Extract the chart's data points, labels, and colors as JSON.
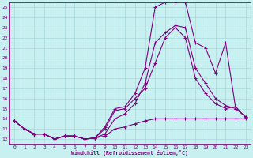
{
  "xlabel": "Windchill (Refroidissement éolien,°C)",
  "bg_color": "#c8f0f0",
  "grid_color": "#a8d8d8",
  "line_color": "#800080",
  "xlim": [
    -0.5,
    23.5
  ],
  "ylim": [
    11.5,
    25.5
  ],
  "xticks": [
    0,
    1,
    2,
    3,
    4,
    5,
    6,
    7,
    8,
    9,
    10,
    11,
    12,
    13,
    14,
    15,
    16,
    17,
    18,
    19,
    20,
    21,
    22,
    23
  ],
  "yticks": [
    12,
    13,
    14,
    15,
    16,
    17,
    18,
    19,
    20,
    21,
    22,
    23,
    24,
    25
  ],
  "line1_x": [
    0,
    1,
    2,
    3,
    4,
    5,
    6,
    7,
    8,
    9,
    10,
    11,
    12,
    13,
    14,
    15,
    16,
    17,
    18,
    19,
    20,
    21,
    22,
    23
  ],
  "line1_y": [
    13.8,
    13.0,
    12.5,
    12.5,
    12.0,
    12.3,
    12.3,
    12.0,
    12.1,
    13.2,
    15.0,
    15.2,
    16.5,
    19.0,
    25.0,
    25.5,
    25.5,
    25.5,
    21.5,
    21.0,
    18.5,
    21.5,
    15.0,
    14.2
  ],
  "line2_x": [
    0,
    1,
    2,
    3,
    4,
    5,
    6,
    7,
    8,
    9,
    10,
    11,
    12,
    13,
    14,
    15,
    16,
    17,
    18,
    19,
    20,
    21,
    22,
    23
  ],
  "line2_y": [
    13.8,
    13.0,
    12.5,
    12.5,
    12.0,
    12.3,
    12.3,
    12.0,
    12.1,
    12.5,
    14.0,
    14.5,
    15.5,
    17.5,
    21.5,
    22.5,
    23.2,
    23.0,
    19.0,
    17.5,
    16.0,
    15.3,
    15.0,
    14.2
  ],
  "line3_x": [
    0,
    1,
    2,
    3,
    4,
    5,
    6,
    7,
    8,
    9,
    10,
    11,
    12,
    13,
    14,
    15,
    16,
    17,
    18,
    19,
    20,
    21,
    22,
    23
  ],
  "line3_y": [
    13.8,
    13.0,
    12.5,
    12.5,
    12.0,
    12.3,
    12.3,
    12.0,
    12.1,
    13.0,
    14.8,
    15.0,
    16.0,
    17.0,
    19.5,
    22.0,
    23.0,
    22.0,
    18.0,
    16.5,
    15.5,
    15.0,
    15.2,
    14.1
  ],
  "line4_x": [
    0,
    1,
    2,
    3,
    4,
    5,
    6,
    7,
    8,
    9,
    10,
    11,
    12,
    13,
    14,
    15,
    16,
    17,
    18,
    19,
    20,
    21,
    22,
    23
  ],
  "line4_y": [
    13.8,
    13.0,
    12.5,
    12.5,
    12.0,
    12.3,
    12.3,
    12.0,
    12.1,
    12.3,
    13.0,
    13.2,
    13.5,
    13.8,
    14.0,
    14.0,
    14.0,
    14.0,
    14.0,
    14.0,
    14.0,
    14.0,
    14.0,
    14.0
  ]
}
